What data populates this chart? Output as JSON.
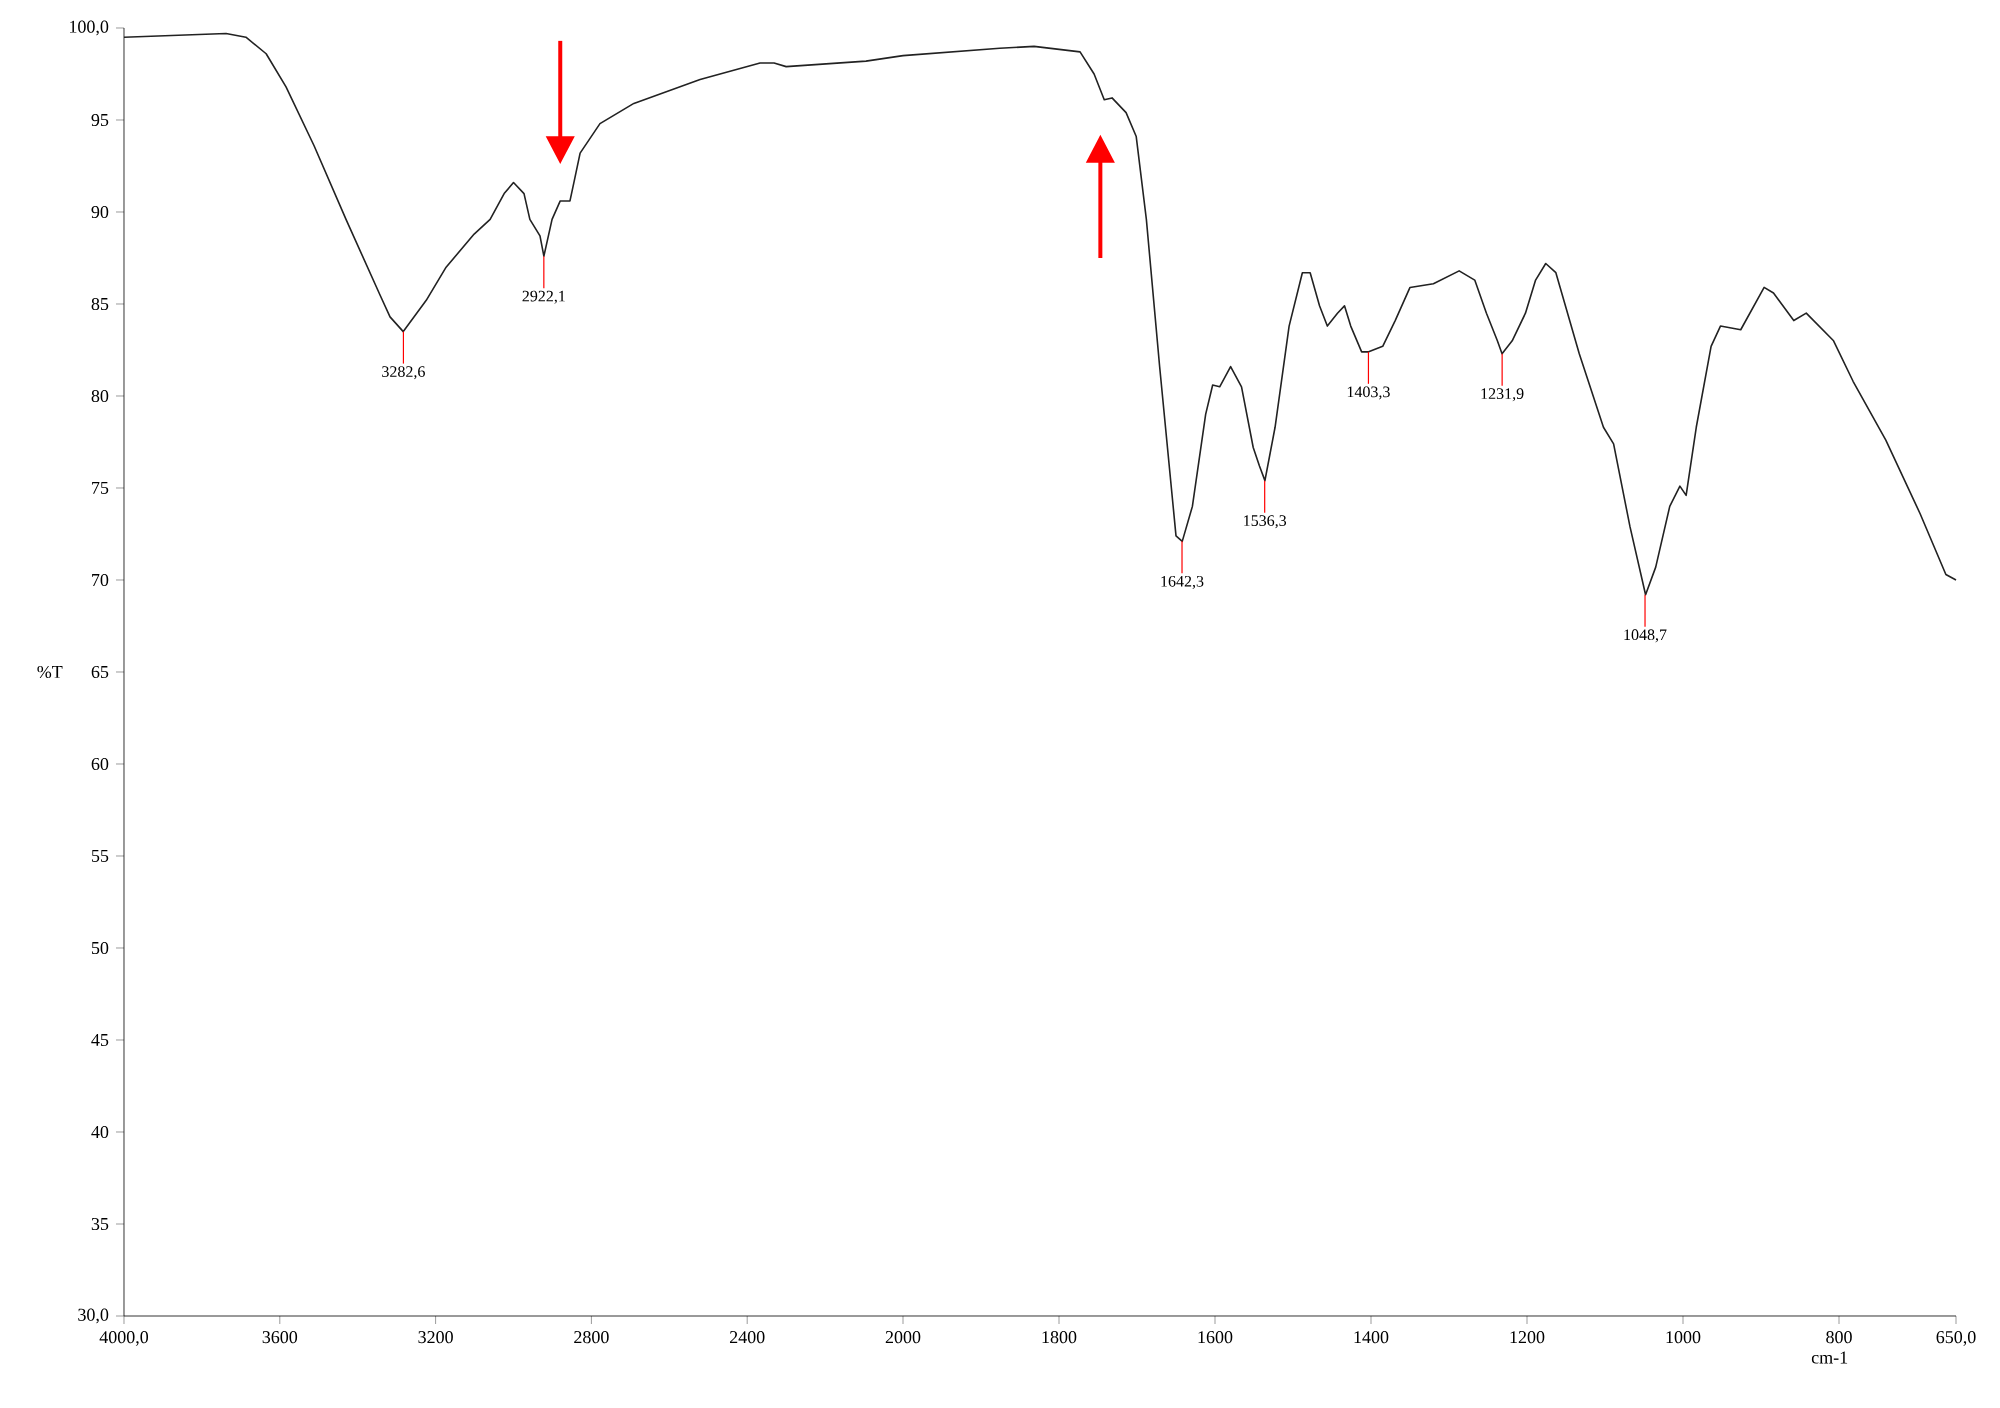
{
  "chart_data": [
    {
      "type": "line",
      "ylabel": "%T",
      "xlim": [
        4000,
        2000
      ],
      "ylim": [
        30,
        100
      ],
      "xticks": [
        {
          "value": 4000,
          "label": "4000,0"
        },
        3600,
        3200,
        2800,
        2400
      ],
      "yticks": [
        {
          "value": 30,
          "label": "30,0"
        },
        35,
        40,
        45,
        50,
        55,
        60,
        65,
        70,
        75,
        80,
        85,
        90,
        95,
        {
          "value": 100,
          "label": "100,0"
        }
      ],
      "marker": "none",
      "line_style": "solid",
      "series": [
        {
          "color": "#222222",
          "x": [
            4000,
            3738,
            3687,
            3635,
            3584,
            3512,
            3430,
            3343,
            3317,
            3283,
            3224,
            3173,
            3101,
            3060,
            3024,
            3000,
            2973,
            2958,
            2932,
            2922,
            2901,
            2880,
            2855,
            2845,
            2829,
            2778,
            2691,
            2521,
            2367,
            2331,
            2300,
            2095,
            2000
          ],
          "values": [
            99.5,
            99.7,
            99.5,
            98.6,
            96.8,
            93.6,
            89.6,
            85.5,
            84.3,
            83.5,
            85.2,
            87.0,
            88.8,
            89.6,
            91.0,
            91.6,
            91.0,
            89.6,
            88.7,
            87.6,
            89.6,
            90.6,
            90.6,
            91.6,
            93.2,
            94.8,
            95.9,
            97.2,
            98.1,
            98.1,
            97.9,
            98.2,
            98.5
          ]
        }
      ],
      "annotations": [
        {
          "text": "3282,6",
          "x": 3282.6,
          "y": 83.5
        },
        {
          "text": "2922,1",
          "x": 2922.1,
          "y": 87.6
        }
      ]
    },
    {
      "type": "line",
      "xlabel": "cm-1",
      "tick_labels": "x",
      "xlim": [
        2000,
        650
      ],
      "ylim": [
        30,
        100
      ],
      "xticks": [
        2000,
        1800,
        1600,
        1400,
        1200,
        1000,
        800,
        {
          "value": 650,
          "label": "650,0"
        }
      ],
      "marker": "none",
      "line_style": "solid",
      "series": [
        {
          "color": "#222222",
          "x": [
            2000,
            1876,
            1832,
            1773,
            1755,
            1742,
            1732,
            1714,
            1701,
            1688,
            1671,
            1650,
            1642,
            1629,
            1612,
            1603,
            1594,
            1580,
            1566,
            1551,
            1543,
            1536,
            1523,
            1505,
            1488,
            1478,
            1466,
            1456,
            1443,
            1434,
            1426,
            1412,
            1403,
            1385,
            1369,
            1350,
            1320,
            1287,
            1267,
            1252,
            1238,
            1232,
            1219,
            1202,
            1189,
            1176,
            1163,
            1133,
            1102,
            1089,
            1068,
            1048,
            1035,
            1017,
            1004,
            996,
            983,
            964,
            952,
            926,
            896,
            884,
            858,
            842,
            807,
            782,
            740,
            696,
            663,
            650
          ],
          "values": [
            98.5,
            98.9,
            99.0,
            98.7,
            97.5,
            96.1,
            96.2,
            95.4,
            94.1,
            89.6,
            81.6,
            72.4,
            72.1,
            74.0,
            79.0,
            80.6,
            80.5,
            81.6,
            80.5,
            77.2,
            76.2,
            75.4,
            78.3,
            83.8,
            86.7,
            86.7,
            84.9,
            83.8,
            84.5,
            84.9,
            83.8,
            82.4,
            82.4,
            82.7,
            84.1,
            85.9,
            86.1,
            86.8,
            86.3,
            84.5,
            83.0,
            82.3,
            83.0,
            84.5,
            86.3,
            87.2,
            86.7,
            82.3,
            78.3,
            77.4,
            72.9,
            69.2,
            70.7,
            74.0,
            75.1,
            74.6,
            78.3,
            82.7,
            83.8,
            83.6,
            85.9,
            85.6,
            84.1,
            84.5,
            83.0,
            80.8,
            77.6,
            73.6,
            70.3,
            70.0
          ]
        }
      ],
      "annotations": [
        {
          "text": "1642,3",
          "x": 1642.3,
          "y": 72.1
        },
        {
          "text": "1536,3",
          "x": 1536.3,
          "y": 75.4
        },
        {
          "text": "1403,3",
          "x": 1403.3,
          "y": 82.4
        },
        {
          "text": "1231,9",
          "x": 1231.9,
          "y": 82.3
        },
        {
          "text": "1048,7",
          "x": 1048.7,
          "y": 69.2
        }
      ]
    }
  ]
}
